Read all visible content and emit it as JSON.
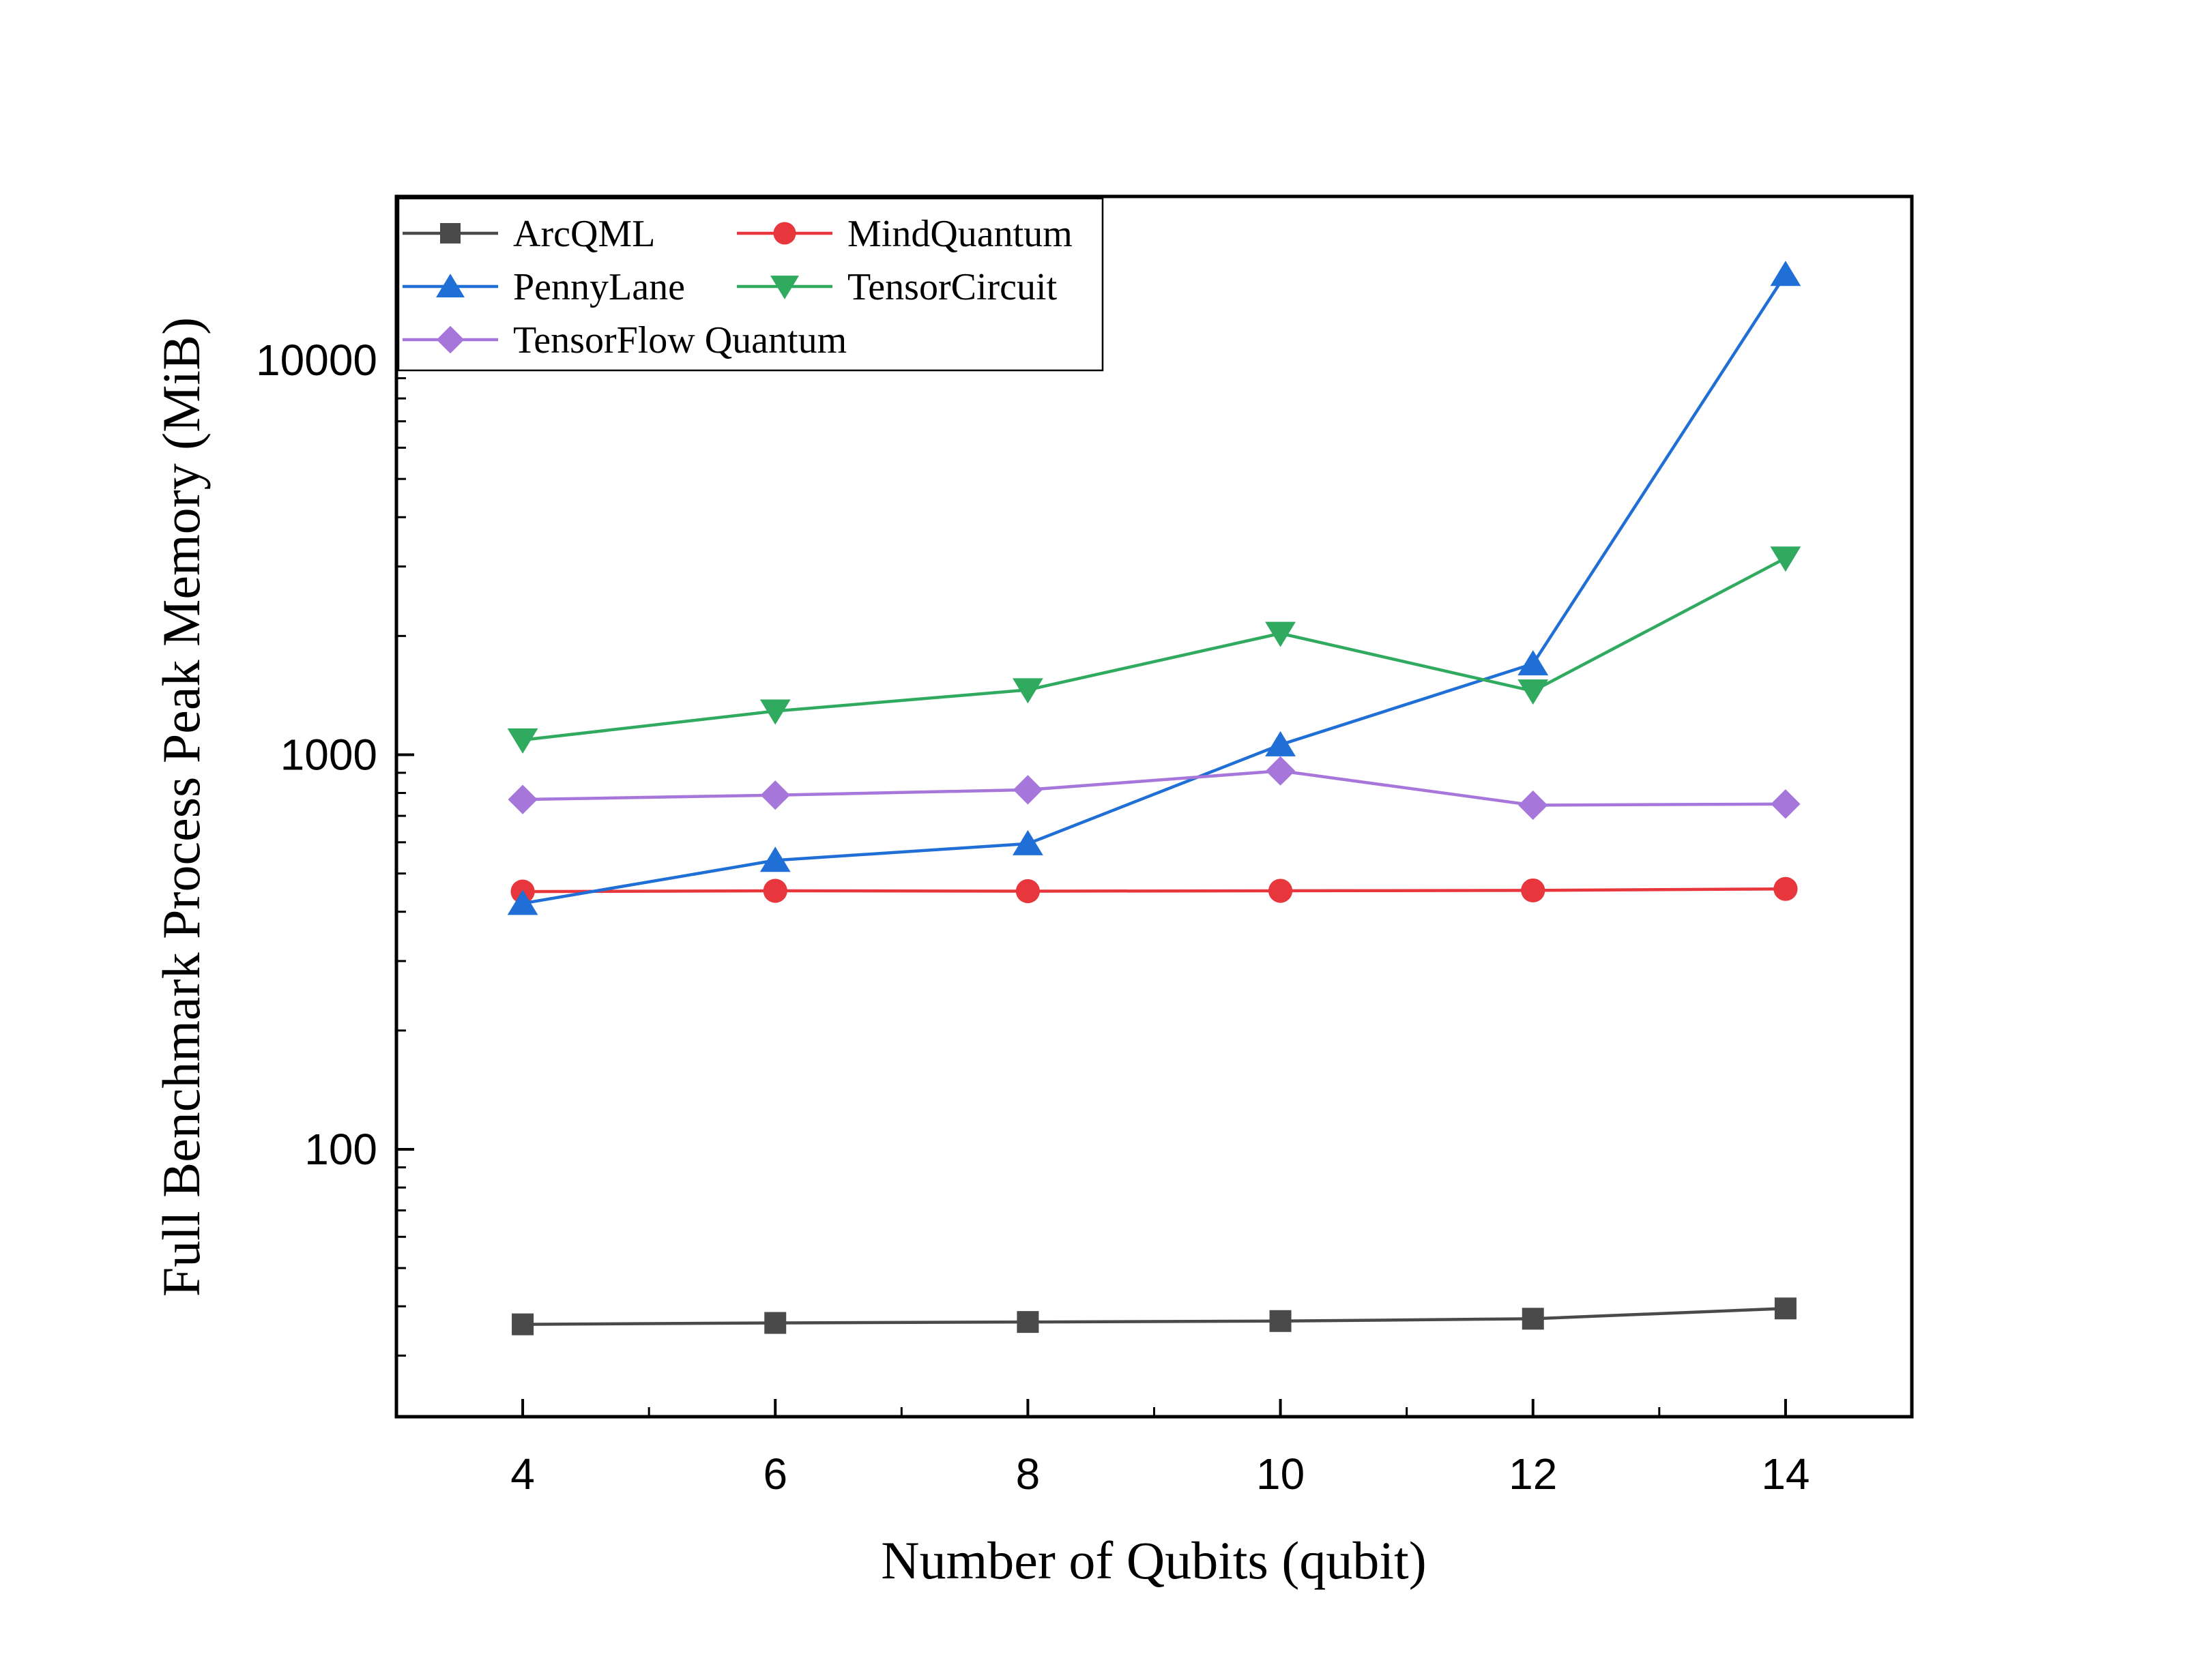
{
  "chart_data": {
    "type": "line",
    "xlabel": "Number of Qubits (qubit)",
    "ylabel": "Full Benchmark Process Peak Memory (MiB)",
    "x": [
      4,
      6,
      8,
      10,
      12,
      14
    ],
    "xlim": [
      3,
      15
    ],
    "xticks": [
      4,
      6,
      8,
      10,
      12,
      14
    ],
    "xtick_labels": [
      "4",
      "6",
      "8",
      "10",
      "12",
      "14"
    ],
    "yscale": "log",
    "ylim": [
      21,
      26000
    ],
    "yticks": [
      100,
      1000,
      10000
    ],
    "ytick_labels": [
      "100",
      "1000",
      "10000"
    ],
    "grid": false,
    "legend_position": "top-left",
    "series": [
      {
        "name": "ArcQML",
        "color": "#4a4a4a",
        "marker": "square",
        "values": [
          36,
          36.3,
          36.5,
          36.7,
          37.2,
          39.5
        ]
      },
      {
        "name": "MindQuantum",
        "color": "#e8373c",
        "marker": "circle",
        "values": [
          450,
          452,
          451,
          452,
          453,
          457
        ]
      },
      {
        "name": "PennyLane",
        "color": "#1f6fd6",
        "marker": "triangle-up",
        "values": [
          420,
          540,
          595,
          1060,
          1700,
          16500
        ]
      },
      {
        "name": "TensorCircuit",
        "color": "#2faa5f",
        "marker": "triangle-down",
        "values": [
          1090,
          1290,
          1460,
          2030,
          1450,
          3150
        ]
      },
      {
        "name": "TensorFlow Quantum",
        "color": "#a776db",
        "marker": "diamond",
        "values": [
          770,
          790,
          815,
          910,
          745,
          750
        ]
      }
    ]
  }
}
